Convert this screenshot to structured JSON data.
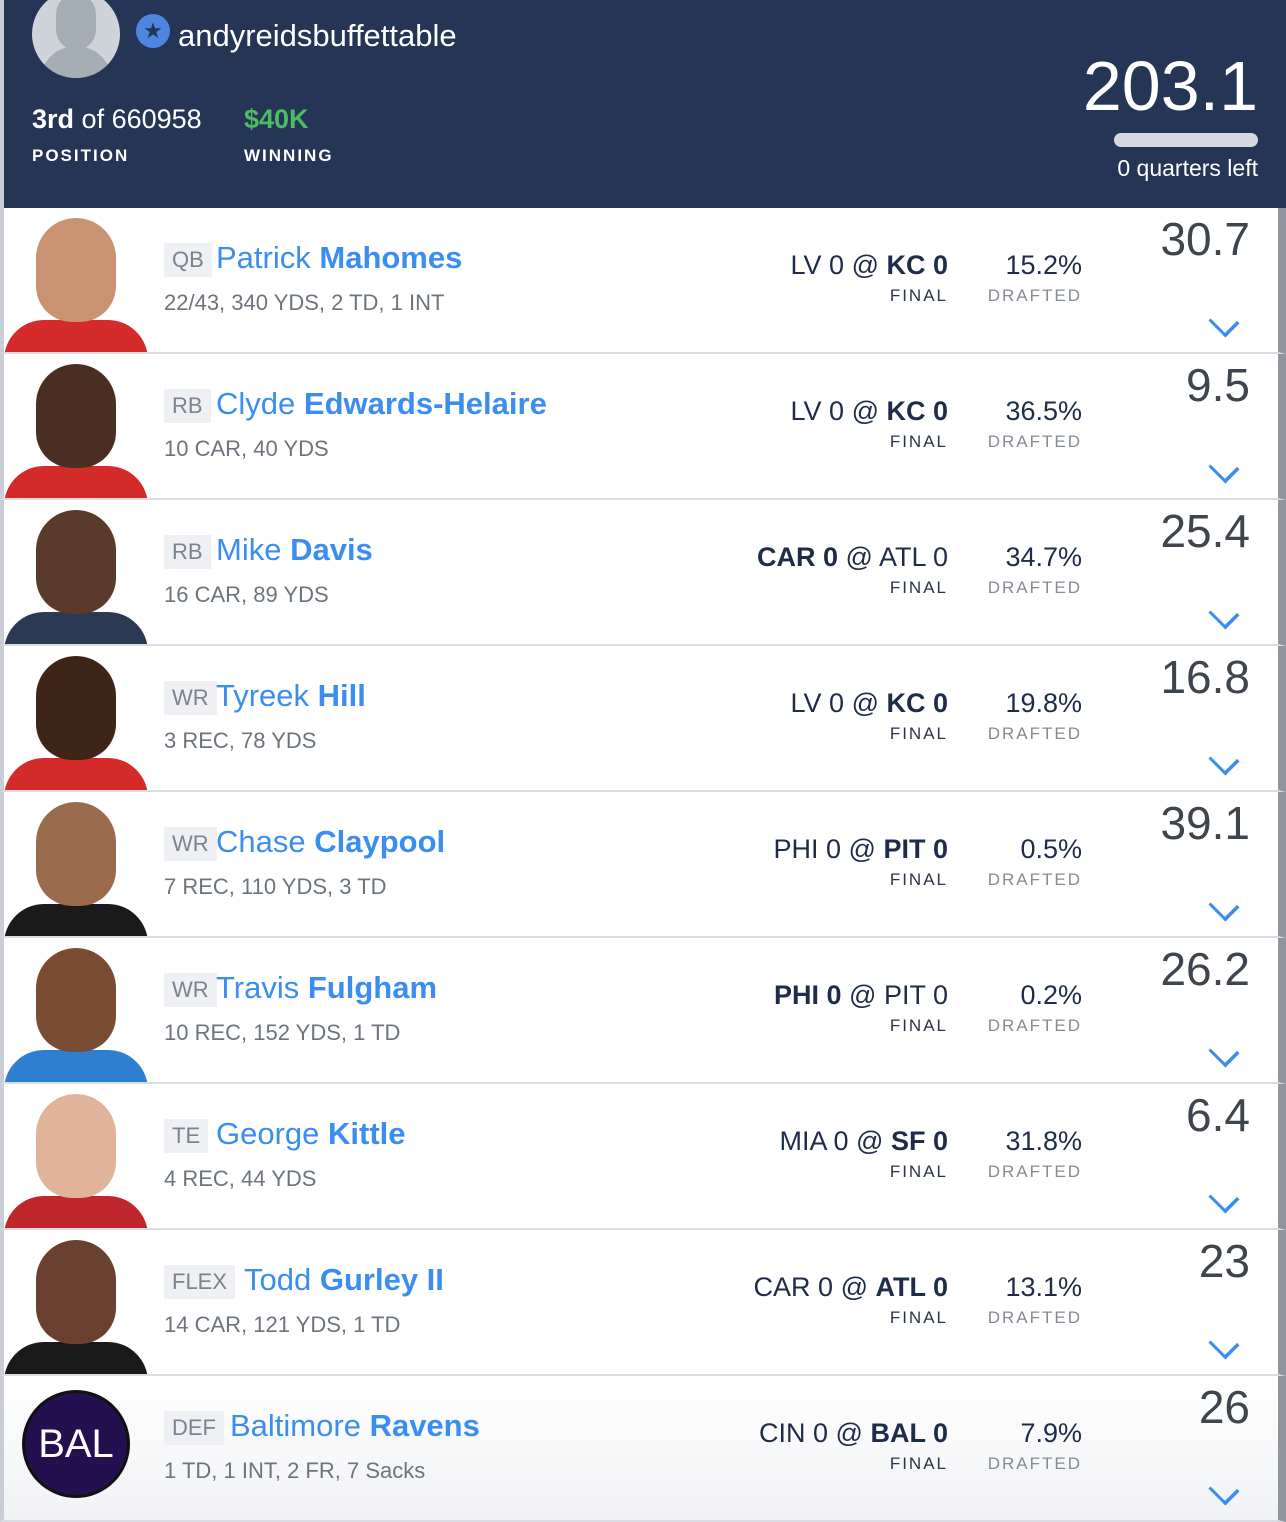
{
  "header": {
    "username": "andyreidsbuffettable",
    "position_rank": "3rd",
    "position_of": "of 660958",
    "position_label": "POSITION",
    "winning": "$40K",
    "winning_label": "WINNING",
    "total_points": "203.1",
    "quarters_left": "0 quarters left",
    "quarters_progress": 1.0,
    "badge_icon": "star-icon"
  },
  "colors": {
    "header_bg": "#243556",
    "accent": "#3b8ef0",
    "winning": "#4cbb63"
  },
  "players": [
    {
      "pos": "QB",
      "first": "Patrick",
      "last": "Mahomes",
      "stats": "22/43, 340 YDS, 2 TD, 1 INT",
      "away": "LV 0",
      "home": "KC 0",
      "bold": "home",
      "status": "FINAL",
      "pct": "15.2%",
      "drafted": "DRAFTED",
      "points": "30.7",
      "skin": "#c99270",
      "jersey": "#d42a2a"
    },
    {
      "pos": "RB",
      "first": "Clyde",
      "last": "Edwards-Helaire",
      "stats": "10 CAR, 40 YDS",
      "away": "LV 0",
      "home": "KC 0",
      "bold": "home",
      "status": "FINAL",
      "pct": "36.5%",
      "drafted": "DRAFTED",
      "points": "9.5",
      "skin": "#4a2e22",
      "jersey": "#d42a2a"
    },
    {
      "pos": "RB",
      "first": "Mike",
      "last": "Davis",
      "stats": "16 CAR, 89 YDS",
      "away": "CAR 0",
      "home": "ATL 0",
      "bold": "away",
      "status": "FINAL",
      "pct": "34.7%",
      "drafted": "DRAFTED",
      "points": "25.4",
      "skin": "#5a3a2a",
      "jersey": "#2b3a52"
    },
    {
      "pos": "WR",
      "first": "Tyreek",
      "last": "Hill",
      "stats": "3 REC, 78 YDS",
      "away": "LV 0",
      "home": "KC 0",
      "bold": "home",
      "status": "FINAL",
      "pct": "19.8%",
      "drafted": "DRAFTED",
      "points": "16.8",
      "skin": "#3e2518",
      "jersey": "#d42a2a"
    },
    {
      "pos": "WR",
      "first": "Chase",
      "last": "Claypool",
      "stats": "7 REC, 110 YDS, 3 TD",
      "away": "PHI 0",
      "home": "PIT 0",
      "bold": "home",
      "status": "FINAL",
      "pct": "0.5%",
      "drafted": "DRAFTED",
      "points": "39.1",
      "skin": "#9a6a4c",
      "jersey": "#1a1a1a"
    },
    {
      "pos": "WR",
      "first": "Travis",
      "last": "Fulgham",
      "stats": "10 REC, 152 YDS, 1 TD",
      "away": "PHI 0",
      "home": "PIT 0",
      "bold": "away",
      "status": "FINAL",
      "pct": "0.2%",
      "drafted": "DRAFTED",
      "points": "26.2",
      "skin": "#7a4c34",
      "jersey": "#2f7fd0"
    },
    {
      "pos": "TE",
      "first": "George",
      "last": "Kittle",
      "stats": "4 REC, 44 YDS",
      "away": "MIA 0",
      "home": "SF 0",
      "bold": "home",
      "status": "FINAL",
      "pct": "31.8%",
      "drafted": "DRAFTED",
      "points": "6.4",
      "skin": "#e0b49a",
      "jersey": "#c0272d"
    },
    {
      "pos": "FLEX",
      "first": "Todd",
      "last": "Gurley II",
      "stats": "14 CAR, 121 YDS, 1 TD",
      "away": "CAR 0",
      "home": "ATL 0",
      "bold": "home",
      "status": "FINAL",
      "pct": "13.1%",
      "drafted": "DRAFTED",
      "points": "23",
      "skin": "#6a4030",
      "jersey": "#1a1a1a"
    },
    {
      "pos": "DEF",
      "first": "Baltimore",
      "last": "Ravens",
      "stats": "1 TD, 1 INT, 2 FR, 7 Sacks",
      "away": "CIN 0",
      "home": "BAL 0",
      "bold": "home",
      "status": "FINAL",
      "pct": "7.9%",
      "drafted": "DRAFTED",
      "points": "26",
      "logo": "BAL"
    }
  ]
}
